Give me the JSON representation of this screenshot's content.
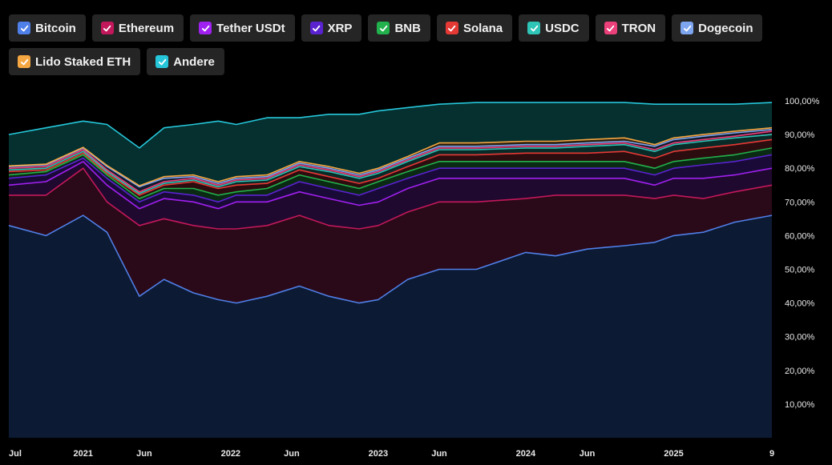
{
  "legend": [
    {
      "label": "Bitcoin",
      "color": "#4f7fe8"
    },
    {
      "label": "Ethereum",
      "color": "#c2185b"
    },
    {
      "label": "Tether USDt",
      "color": "#a020f0"
    },
    {
      "label": "XRP",
      "color": "#5a22d0"
    },
    {
      "label": "BNB",
      "color": "#22b14c"
    },
    {
      "label": "Solana",
      "color": "#e53935"
    },
    {
      "label": "USDC",
      "color": "#2ec4b6"
    },
    {
      "label": "TRON",
      "color": "#ec407a"
    },
    {
      "label": "Dogecoin",
      "color": "#7ea6f0"
    },
    {
      "label": "Lido Staked ETH",
      "color": "#f5a742"
    },
    {
      "label": "Andere",
      "color": "#26c6da"
    }
  ],
  "chart_data": {
    "type": "area",
    "stacked": true,
    "ylim": [
      0,
      100
    ],
    "y_ticks": [
      "10,00%",
      "20,00%",
      "30,00%",
      "40,00%",
      "50,00%",
      "60,00%",
      "70,00%",
      "80,00%",
      "90,00%",
      "100,00%"
    ],
    "x_ticks": [
      "Jul",
      "2021",
      "Jun",
      "2022",
      "Jun",
      "2023",
      "Jun",
      "2024",
      "Jun",
      "2025",
      "9"
    ],
    "x_dates": [
      "2020-07-01",
      "2020-10-01",
      "2021-01-01",
      "2021-03-01",
      "2021-05-20",
      "2021-07-20",
      "2021-10-01",
      "2021-12-01",
      "2022-01-15",
      "2022-04-01",
      "2022-06-20",
      "2022-09-01",
      "2022-11-15",
      "2023-01-01",
      "2023-03-15",
      "2023-06-01",
      "2023-09-01",
      "2024-01-01",
      "2024-03-15",
      "2024-06-01",
      "2024-09-01",
      "2024-11-15",
      "2025-01-01",
      "2025-03-15",
      "2025-06-01",
      "2025-09-01"
    ],
    "cumulative_series": [
      {
        "name": "Bitcoin",
        "color": "#4f7fe8",
        "fill": "#0d1a33",
        "values": [
          63,
          60,
          66,
          61,
          42,
          47,
          43,
          41,
          40,
          42,
          45,
          42,
          40,
          41,
          47,
          50,
          50,
          55,
          54,
          56,
          57,
          58,
          60,
          61,
          64,
          66
        ]
      },
      {
        "name": "Ethereum",
        "color": "#c2185b",
        "fill": "#2a0a18",
        "values": [
          72,
          72,
          80,
          70,
          63,
          65,
          63,
          62,
          62,
          63,
          66,
          63,
          62,
          63,
          67,
          70,
          70,
          71,
          72,
          72,
          72,
          71,
          72,
          71,
          73,
          75
        ]
      },
      {
        "name": "Tether USDt",
        "color": "#a020f0",
        "fill": "#20092e",
        "values": [
          75,
          76,
          82,
          75,
          68,
          71,
          70,
          68,
          70,
          70,
          73,
          71,
          69,
          70,
          74,
          77,
          77,
          77,
          77,
          77,
          77,
          75,
          77,
          77,
          78,
          80
        ]
      },
      {
        "name": "XRP",
        "color": "#5a22d0",
        "fill": "#1a0a38",
        "values": [
          77,
          78,
          83,
          77,
          70,
          73,
          72,
          70,
          72,
          72,
          76,
          74,
          72,
          74,
          77,
          80,
          80,
          80,
          80,
          80,
          80,
          78,
          80,
          81,
          82,
          84
        ]
      },
      {
        "name": "BNB",
        "color": "#22b14c",
        "fill": "#0b2a14",
        "values": [
          78,
          79,
          84,
          78,
          71,
          74,
          74,
          72,
          73,
          74,
          78,
          76,
          74,
          76,
          79,
          82,
          82,
          82,
          82,
          82,
          82,
          80,
          82,
          83,
          84,
          86
        ]
      },
      {
        "name": "Solana",
        "color": "#e53935",
        "fill": "#2c0d0f",
        "values": [
          79,
          79.5,
          84.5,
          78.5,
          72,
          75,
          76,
          74,
          75,
          75.5,
          79.5,
          77.5,
          75.5,
          77,
          80.5,
          84,
          84,
          84.5,
          84.5,
          84.5,
          85,
          83,
          85,
          86,
          87,
          88.5
        ]
      },
      {
        "name": "USDC",
        "color": "#2ec4b6",
        "fill": "#0a2a28",
        "values": [
          79.5,
          80,
          85,
          79,
          72.5,
          75.5,
          76.5,
          74.5,
          76,
          76.5,
          80.5,
          79,
          77,
          78.5,
          82,
          85.5,
          85.5,
          86,
          86,
          86.5,
          87,
          85,
          87,
          88,
          89,
          90
        ]
      },
      {
        "name": "TRON",
        "color": "#ec407a",
        "fill": "#2c0a1a",
        "values": [
          80,
          80.5,
          85.5,
          79.5,
          73,
          76,
          77,
          75,
          76.5,
          77,
          81,
          79.5,
          77.5,
          79,
          82.5,
          86,
          86,
          86.5,
          86.5,
          87,
          87.5,
          85.5,
          87.5,
          88.5,
          89.5,
          91
        ]
      },
      {
        "name": "Dogecoin",
        "color": "#7ea6f0",
        "fill": "#121c2e",
        "values": [
          80.5,
          81,
          86,
          80.5,
          74.5,
          77,
          77.5,
          75.5,
          77,
          77.5,
          81.5,
          80,
          78,
          79.5,
          83,
          86.5,
          86.5,
          87,
          87,
          87.5,
          88,
          86.5,
          88.5,
          89.5,
          90.5,
          91.5
        ]
      },
      {
        "name": "Lido Staked ETH",
        "color": "#f5a742",
        "fill": "#2c2010",
        "values": [
          80.7,
          81.2,
          86.2,
          80.8,
          74.8,
          77.5,
          78,
          76,
          77.5,
          78,
          82,
          80.5,
          78.5,
          80,
          83.5,
          87.5,
          87.5,
          88,
          88,
          88.5,
          89,
          87,
          89,
          90,
          91,
          92
        ]
      },
      {
        "name": "Andere",
        "color": "#26c6da",
        "fill": "#05302f",
        "values": [
          90,
          92,
          94,
          93,
          86,
          92,
          93,
          94,
          93,
          95,
          95,
          96,
          96,
          97,
          98,
          99,
          99.5,
          99.5,
          99.5,
          99.5,
          99.5,
          99,
          99,
          99,
          99,
          99.5
        ]
      }
    ]
  }
}
